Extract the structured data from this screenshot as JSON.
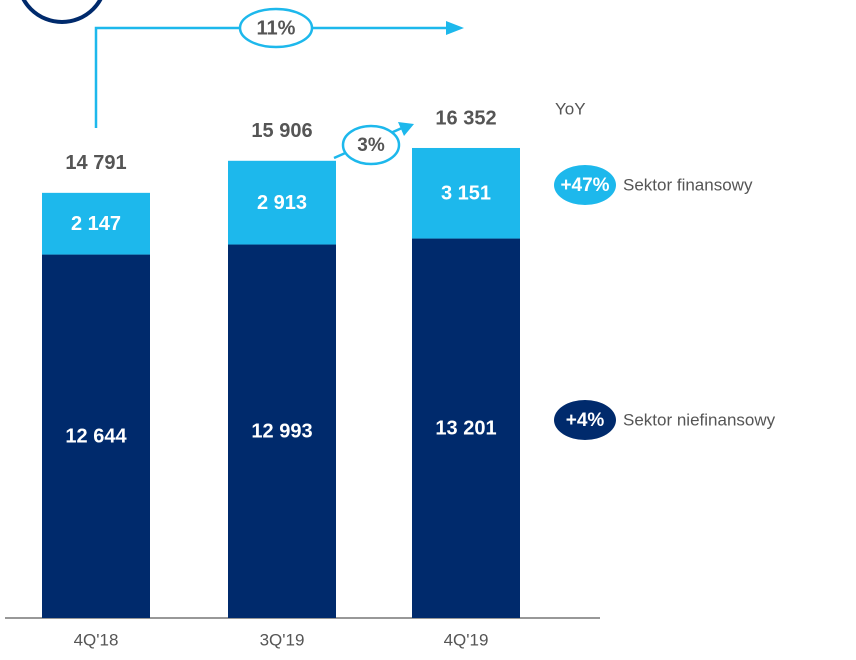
{
  "chart_data": {
    "type": "stacked-bar",
    "categories": [
      "4Q'18",
      "3Q'19",
      "4Q'19"
    ],
    "series": [
      {
        "name": "Sektor niefinansowy",
        "color": "#002a6c",
        "values": [
          12644,
          12993,
          13201
        ],
        "value_labels": [
          "12 644",
          "12 993",
          "13 201"
        ],
        "change": "+4%"
      },
      {
        "name": "Sektor finansowy",
        "color": "#1db8ec",
        "values": [
          2147,
          2913,
          3151
        ],
        "value_labels": [
          "2 147",
          "2 913",
          "3 151"
        ],
        "change": "+47%"
      }
    ],
    "totals": [
      14791,
      15906,
      16352
    ],
    "total_labels": [
      "14 791",
      "15 906",
      "16 352"
    ],
    "annotations": {
      "yoy": "YoY",
      "growth_total": "11%",
      "growth_qoq": "3%"
    },
    "ylim": [
      0,
      21500
    ]
  }
}
